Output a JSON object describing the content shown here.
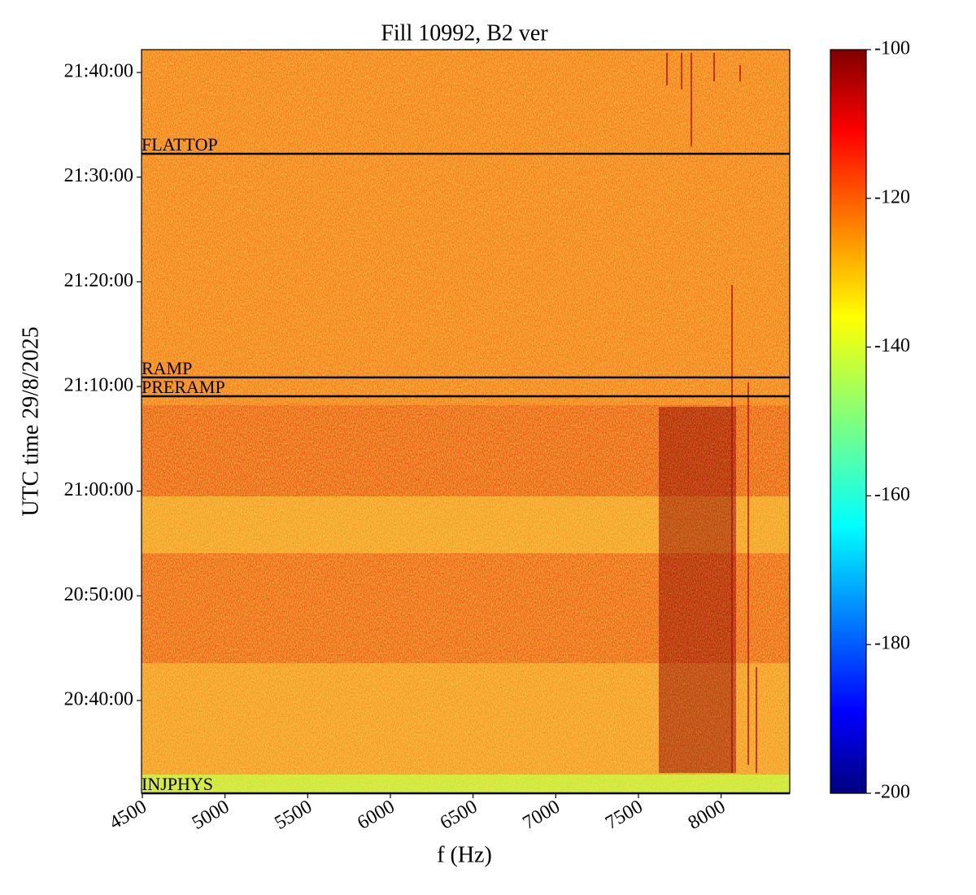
{
  "chart_data": {
    "type": "spectrogram",
    "title": "Fill 10992, B2 ver",
    "xlabel": "f (Hz)",
    "ylabel": "UTC time 29/8/2025",
    "xlim": [
      4495,
      8415
    ],
    "xticks": [
      4500,
      5000,
      5500,
      6000,
      6500,
      7000,
      7500,
      8000
    ],
    "ylim": [
      73868,
      78131
    ],
    "yticks": [
      {
        "value": 74400,
        "label": "20:40:00"
      },
      {
        "value": 75000,
        "label": "20:50:00"
      },
      {
        "value": 75600,
        "label": "21:00:00"
      },
      {
        "value": 76200,
        "label": "21:10:00"
      },
      {
        "value": 76800,
        "label": "21:20:00"
      },
      {
        "value": 77400,
        "label": "21:30:00"
      },
      {
        "value": 78000,
        "label": "21:40:00"
      }
    ],
    "phases": [
      {
        "label": "FLATTOP",
        "time": 77534
      },
      {
        "label": "RAMP",
        "time": 76252
      },
      {
        "label": "PRERAMP",
        "time": 76144
      },
      {
        "label": "INJPHYS",
        "time": 73868
      }
    ],
    "colorbar": {
      "colormap": "jet",
      "clim": [
        -200,
        -100
      ],
      "ticks": [
        -200,
        -180,
        -160,
        -140,
        -120,
        -100
      ]
    }
  }
}
